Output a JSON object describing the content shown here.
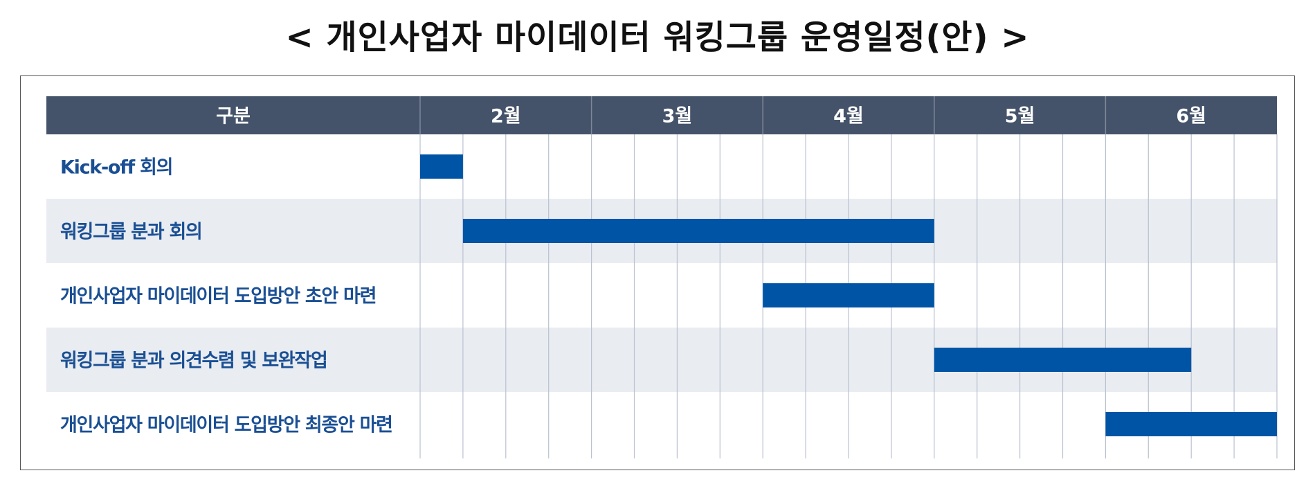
{
  "title": "< 개인사업자 마이데이터 워킹그룹 운영일정(안) >",
  "chart_data": {
    "type": "gantt",
    "header_label": "구분",
    "months": [
      "2월",
      "3월",
      "4월",
      "5월",
      "6월"
    ],
    "weeks_per_month": 4,
    "tasks": [
      {
        "label": "Kick-off 회의",
        "start_week": 0,
        "end_week": 1
      },
      {
        "label": "워킹그룹 분과 회의",
        "start_week": 1,
        "end_week": 12
      },
      {
        "label": "개인사업자 마이데이터 도입방안 초안 마련",
        "start_week": 8,
        "end_week": 12
      },
      {
        "label": "워킹그룹 분과 의견수렴 및 보완작업",
        "start_week": 12,
        "end_week": 18
      },
      {
        "label": "개인사업자 마이데이터 도입방안 최종안 마련",
        "start_week": 16,
        "end_week": 20
      }
    ],
    "colors": {
      "header_bg": "#45536a",
      "header_text": "#ffffff",
      "bar": "#0054a6",
      "label_text": "#1a4f94",
      "row_alt_bg": "#e9ecf1",
      "grid_line": "#b9c2d0"
    }
  }
}
